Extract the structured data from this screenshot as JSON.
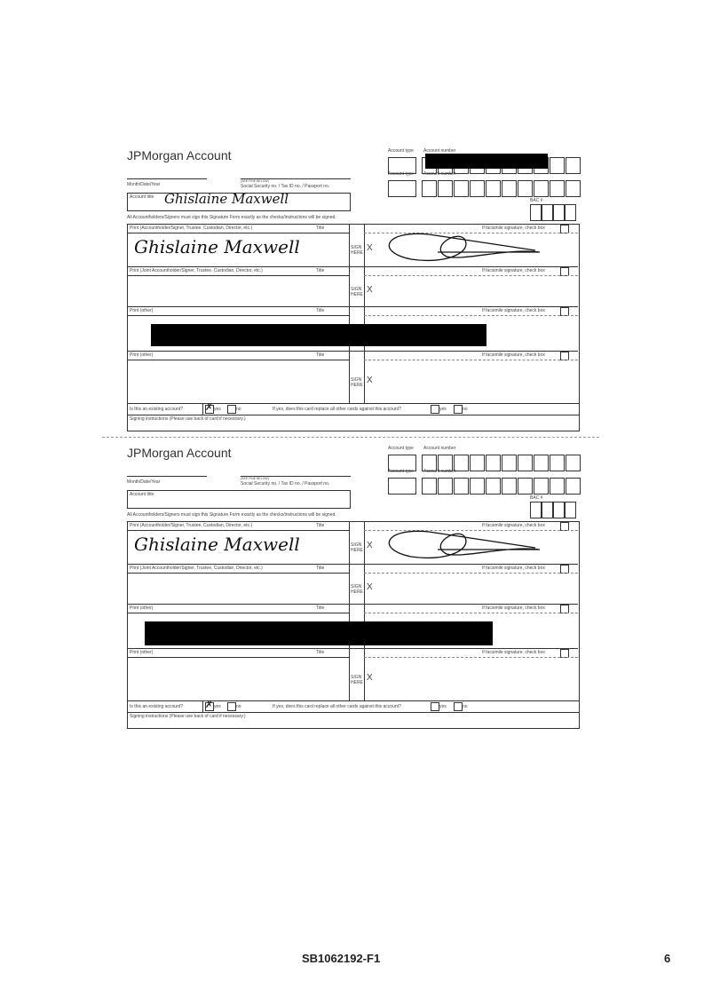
{
  "cards": [
    {
      "title": "JPMorgan Account",
      "account_type_label": "Account type",
      "account_number_label": "Account number",
      "date_label": "Month/Date/Year",
      "ssn_small_label": "(SEE FINE BELOW)",
      "ssn_label": "Social Security no. / Tax ID no. / Passport no.",
      "account_title_label": "Account title",
      "account_title_value": "Ghislaine Maxwell",
      "bac_label": "BAC #",
      "statement": "All Accountholders/Signers must sign this Signature Form exactly as the checks/instructions will be signed.",
      "rows": [
        {
          "print_label": "Print (Accountholder/Signer, Trustee, Custodian, Director, etc.)",
          "title_label": "Title",
          "name": "Ghislaine Maxwell",
          "facsimile": "If facsimile signature, check box",
          "sign_label": "SIGN HERE",
          "x": "X",
          "signed": true
        },
        {
          "print_label": "Print (Joint Accountholder/Signer, Trustee, Custodian, Director, etc.)",
          "title_label": "Title",
          "name": "",
          "facsimile": "If facsimile signature, check box",
          "sign_label": "SIGN HERE",
          "x": "X",
          "signed": false
        },
        {
          "print_label": "Print (other)",
          "title_label": "Title",
          "name": "",
          "facsimile": "If facsimile signature, check box",
          "sign_label": "",
          "x": "",
          "signed": false,
          "redacted": true
        },
        {
          "print_label": "Print (other)",
          "title_label": "Title",
          "name": "",
          "facsimile": "If facsimile signature, check box",
          "sign_label": "SIGN HERE",
          "x": "X",
          "signed": false
        }
      ],
      "existing_q": "Is this an existing account?",
      "yes": "yes",
      "no": "no",
      "existing_answer": "yes",
      "replace_q": "If yes, does this card replace all other cards against this account?",
      "instructions": "Signing instructions (Please use back of card if necessary.)",
      "account_number_redacted": true
    },
    {
      "title": "JPMorgan Account",
      "account_type_label": "Account type",
      "account_number_label": "Account number",
      "date_label": "Month/Date/Year",
      "ssn_small_label": "(SEE FINE BELOW)",
      "ssn_label": "Social Security no. / Tax ID no. / Passport no.",
      "account_title_label": "Account title",
      "account_title_value": "",
      "bac_label": "BAC #",
      "statement": "All Accountholders/Signers must sign this Signature Form exactly as the checks/instructions will be signed.",
      "rows": [
        {
          "print_label": "Print (Accountholder/Signer, Trustee, Custodian, Director, etc.)",
          "title_label": "Title",
          "name": "Ghislaine Maxwell",
          "facsimile": "If facsimile signature, check box",
          "sign_label": "SIGN HERE",
          "x": "X",
          "signed": true
        },
        {
          "print_label": "Print (Joint Accountholder/Signer, Trustee, Custodian, Director, etc.)",
          "title_label": "Title",
          "name": "",
          "facsimile": "If facsimile signature, check box",
          "sign_label": "SIGN HERE",
          "x": "X",
          "signed": false
        },
        {
          "print_label": "Print (other)",
          "title_label": "Title",
          "name": "",
          "facsimile": "If facsimile signature, check box",
          "sign_label": "",
          "x": "",
          "signed": false,
          "redacted": true
        },
        {
          "print_label": "Print (other)",
          "title_label": "Title",
          "name": "",
          "facsimile": "If facsimile signature, check box",
          "sign_label": "SIGN HERE",
          "x": "X",
          "signed": false
        }
      ],
      "existing_q": "Is this an existing account?",
      "yes": "yes",
      "no": "no",
      "existing_answer": "yes",
      "replace_q": "If yes, does this card replace all other cards against this account?",
      "instructions": "Signing instructions (Please use back of card if necessary.)",
      "account_number_redacted": false
    }
  ],
  "footer": {
    "doc_id": "SB1062192-F1",
    "page_number": "6"
  }
}
